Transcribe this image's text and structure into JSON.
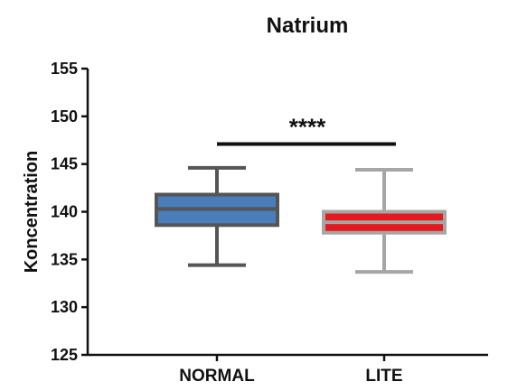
{
  "chart_data": {
    "type": "box",
    "title": "Natrium",
    "ylabel": "Koncentration",
    "xlabel": "",
    "ylim": [
      125,
      155
    ],
    "y_ticks": [
      125,
      130,
      135,
      140,
      145,
      150,
      155
    ],
    "categories": [
      "NORMAL",
      "LITE"
    ],
    "boxes": [
      {
        "category": "NORMAL",
        "min": 134.4,
        "q1": 138.6,
        "median": 140.3,
        "q3": 141.8,
        "max": 144.6,
        "fill": "#4a7ebb",
        "stroke": "#555555",
        "median_color": "#555555"
      },
      {
        "category": "LITE",
        "min": 133.7,
        "q1": 137.8,
        "median": 138.9,
        "q3": 140.0,
        "max": 144.4,
        "fill": "#e41a1c",
        "stroke": "#a6a6a6",
        "median_color": "#a6a6a6"
      }
    ],
    "significance": {
      "label": "****",
      "from": "NORMAL",
      "to": "LITE",
      "y": 147.1
    },
    "grid": false,
    "legend": "none"
  }
}
